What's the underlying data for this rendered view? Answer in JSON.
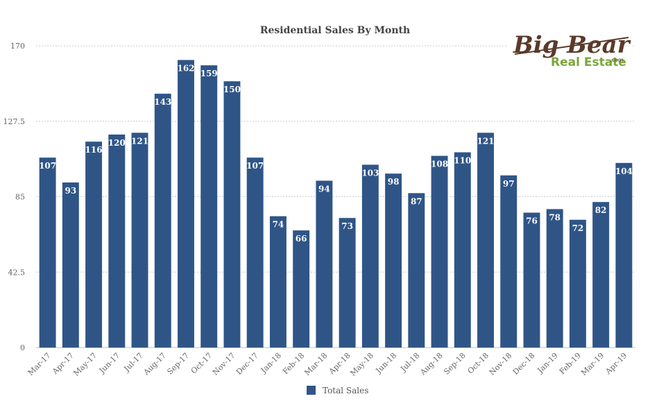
{
  "logo": {
    "line1": "Big Bear",
    "line2": "Real Estate",
    "suffix": ".com"
  },
  "chart_data": {
    "type": "bar",
    "title": "Residential Sales By Month",
    "xlabel": "",
    "ylabel": "",
    "ylim": [
      0,
      170
    ],
    "yticks": [
      "0",
      "42.5",
      "85",
      "127.5",
      "170"
    ],
    "grid": true,
    "legend_position": "bottom",
    "bar_color": "#2f5587",
    "categories": [
      "Mar-17",
      "Apr-17",
      "May-17",
      "Jun-17",
      "Jul-17",
      "Aug-17",
      "Sep-17",
      "Oct-17",
      "Nov-17",
      "Dec-17",
      "Jan-18",
      "Feb-18",
      "Mar-18",
      "Apr-18",
      "May-18",
      "Jun-18",
      "Jul-18",
      "Aug-18",
      "Sep-18",
      "Oct-18",
      "Nov-18",
      "Dec-18",
      "Jan-19",
      "Feb-19",
      "Mar-19",
      "Apr-19"
    ],
    "series": [
      {
        "name": "Total Sales",
        "values": [
          107,
          93,
          116,
          120,
          121,
          143,
          162,
          159,
          150,
          107,
          74,
          66,
          94,
          73,
          103,
          98,
          87,
          108,
          110,
          121,
          97,
          76,
          78,
          72,
          82,
          104
        ]
      }
    ]
  }
}
